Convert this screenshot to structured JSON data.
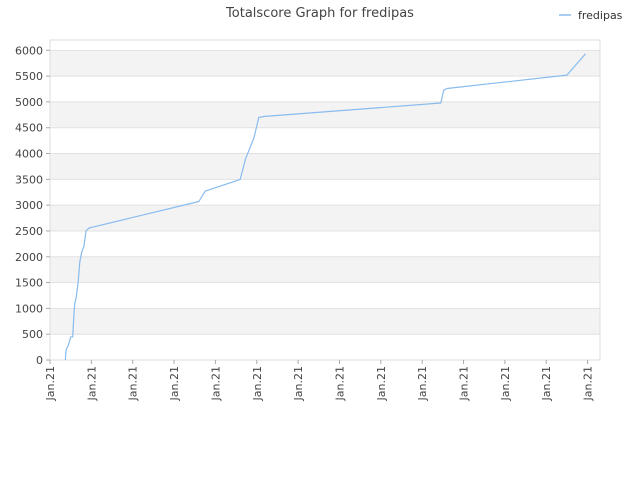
{
  "chart_data": {
    "type": "line",
    "title": "Totalscore Graph for fredipas",
    "xlabel": "",
    "ylabel": "",
    "ylim": [
      0,
      6200
    ],
    "yticks": [
      0,
      500,
      1000,
      1500,
      2000,
      2500,
      3000,
      3500,
      4000,
      4500,
      5000,
      5500,
      6000
    ],
    "xlim": [
      0,
      13.3
    ],
    "xtick_positions": [
      0,
      1,
      2,
      3,
      4,
      5,
      6,
      7,
      8,
      9,
      10,
      11,
      12,
      13
    ],
    "xtick_labels": [
      "Jan.21",
      "Jan.21",
      "Jan.21",
      "Jan.21",
      "Jan.21",
      "Jan.21",
      "Jan.21",
      "Jan.21",
      "Jan.21",
      "Jan.21",
      "Jan.21",
      "Jan.21",
      "Jan.21",
      "Jan.21"
    ],
    "grid": "horizontal-bands",
    "legend_position": "top-right",
    "series": [
      {
        "name": "fredipas",
        "color": "#88bbee",
        "x": [
          0.37,
          0.39,
          0.45,
          0.5,
          0.55,
          0.58,
          0.6,
          0.63,
          0.68,
          0.72,
          0.77,
          0.82,
          0.87,
          0.92,
          0.95,
          3.6,
          3.75,
          4.6,
          4.73,
          4.93,
          5.05,
          5.2,
          9.45,
          9.52,
          9.6,
          12.5,
          12.95
        ],
        "y": [
          0,
          200,
          300,
          450,
          450,
          900,
          1100,
          1200,
          1500,
          1900,
          2100,
          2200,
          2500,
          2540,
          2560,
          3070,
          3270,
          3500,
          3900,
          4300,
          4700,
          4720,
          4980,
          5230,
          5260,
          5520,
          5930
        ]
      }
    ]
  }
}
